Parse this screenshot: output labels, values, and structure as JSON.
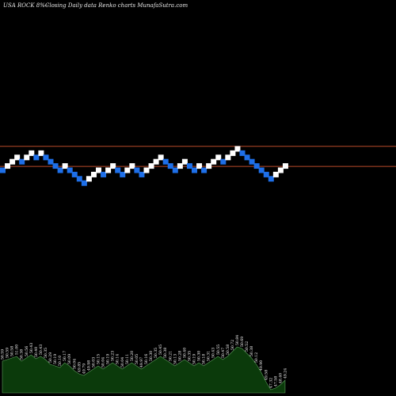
{
  "header": {
    "ticker": "USA ROCK 8%--",
    "description": "Closing Daily data  Renko  charts MunafaSutra.com"
  },
  "colors": {
    "background": "#000000",
    "up_brick": "#ffffff",
    "down_brick": "#1e6fe8",
    "reference_line": "#b84a2a",
    "volume_fill": "#0b3a0b",
    "volume_outline": "#5ea05e"
  },
  "chart_data": {
    "type": "renko",
    "bricks": [
      {
        "dir": "down",
        "level": 0
      },
      {
        "dir": "up",
        "level": 1
      },
      {
        "dir": "up",
        "level": 2
      },
      {
        "dir": "up",
        "level": 3
      },
      {
        "dir": "down",
        "level": 2
      },
      {
        "dir": "up",
        "level": 3
      },
      {
        "dir": "up",
        "level": 4
      },
      {
        "dir": "down",
        "level": 3
      },
      {
        "dir": "up",
        "level": 4
      },
      {
        "dir": "down",
        "level": 3
      },
      {
        "dir": "down",
        "level": 2
      },
      {
        "dir": "down",
        "level": 1
      },
      {
        "dir": "down",
        "level": 0
      },
      {
        "dir": "up",
        "level": 1
      },
      {
        "dir": "down",
        "level": 0
      },
      {
        "dir": "down",
        "level": -1
      },
      {
        "dir": "down",
        "level": -2
      },
      {
        "dir": "down",
        "level": -3
      },
      {
        "dir": "up",
        "level": -2
      },
      {
        "dir": "up",
        "level": -1
      },
      {
        "dir": "up",
        "level": 0
      },
      {
        "dir": "down",
        "level": -1
      },
      {
        "dir": "up",
        "level": 0
      },
      {
        "dir": "up",
        "level": 1
      },
      {
        "dir": "down",
        "level": 0
      },
      {
        "dir": "down",
        "level": -1
      },
      {
        "dir": "up",
        "level": 0
      },
      {
        "dir": "up",
        "level": 1
      },
      {
        "dir": "down",
        "level": 0
      },
      {
        "dir": "down",
        "level": -1
      },
      {
        "dir": "up",
        "level": 0
      },
      {
        "dir": "up",
        "level": 1
      },
      {
        "dir": "up",
        "level": 2
      },
      {
        "dir": "up",
        "level": 3
      },
      {
        "dir": "down",
        "level": 2
      },
      {
        "dir": "down",
        "level": 1
      },
      {
        "dir": "down",
        "level": 0
      },
      {
        "dir": "up",
        "level": 1
      },
      {
        "dir": "up",
        "level": 2
      },
      {
        "dir": "down",
        "level": 1
      },
      {
        "dir": "down",
        "level": 0
      },
      {
        "dir": "up",
        "level": 1
      },
      {
        "dir": "down",
        "level": 0
      },
      {
        "dir": "up",
        "level": 1
      },
      {
        "dir": "up",
        "level": 2
      },
      {
        "dir": "up",
        "level": 3
      },
      {
        "dir": "down",
        "level": 2
      },
      {
        "dir": "up",
        "level": 3
      },
      {
        "dir": "up",
        "level": 4
      },
      {
        "dir": "up",
        "level": 5
      },
      {
        "dir": "down",
        "level": 4
      },
      {
        "dir": "down",
        "level": 3
      },
      {
        "dir": "down",
        "level": 2
      },
      {
        "dir": "down",
        "level": 1
      },
      {
        "dir": "down",
        "level": 0
      },
      {
        "dir": "down",
        "level": -1
      },
      {
        "dir": "down",
        "level": -2
      },
      {
        "dir": "up",
        "level": -1
      },
      {
        "dir": "up",
        "level": 0
      },
      {
        "dir": "up",
        "level": 1
      }
    ],
    "reference_lines": [
      {
        "level": 5.6
      },
      {
        "level": 0.9
      }
    ],
    "volume": {
      "values": [
        40,
        42,
        44,
        46,
        40,
        44,
        48,
        43,
        46,
        42,
        36,
        34,
        32,
        38,
        34,
        28,
        24,
        22,
        26,
        30,
        34,
        30,
        34,
        38,
        34,
        30,
        34,
        38,
        34,
        30,
        34,
        38,
        42,
        46,
        42,
        38,
        34,
        38,
        42,
        38,
        34,
        38,
        34,
        38,
        42,
        46,
        42,
        46,
        52,
        58,
        56,
        50,
        44,
        36,
        26,
        14,
        4,
        6,
        10,
        16
      ],
      "labels": [
        "50.59",
        "50.59",
        "50.58",
        "51.00",
        "50.38",
        "50.56",
        "50.43",
        "50.40",
        "50.43",
        "50.35",
        "50.29",
        "50.19",
        "50.10",
        "50.17",
        "50.09",
        "50.04",
        "49.85",
        "49.79",
        "49.98",
        "50.03",
        "50.15",
        "50.04",
        "50.19",
        "50.23",
        "50.14",
        "50.04",
        "50.11",
        "50.20",
        "50.05",
        "49.97",
        "50.16",
        "50.30",
        "50.35",
        "50.45",
        "50.38",
        "50.21",
        "50.13",
        "50.28",
        "50.40",
        "50.35",
        "50.19",
        "50.30",
        "50.18",
        "50.31",
        "50.43",
        "50.55",
        "50.47",
        "50.58",
        "50.72",
        "50.84",
        "50.69",
        "50.52",
        "50.38",
        "50.12",
        "49.90",
        "49.58",
        "47.32",
        "47.58",
        "48.40",
        "49.24"
      ]
    }
  }
}
